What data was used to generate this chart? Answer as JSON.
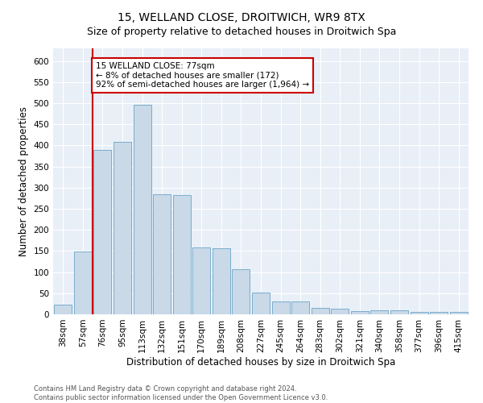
{
  "title": "15, WELLAND CLOSE, DROITWICH, WR9 8TX",
  "subtitle": "Size of property relative to detached houses in Droitwich Spa",
  "xlabel": "Distribution of detached houses by size in Droitwich Spa",
  "ylabel": "Number of detached properties",
  "categories": [
    "38sqm",
    "57sqm",
    "76sqm",
    "95sqm",
    "113sqm",
    "132sqm",
    "151sqm",
    "170sqm",
    "189sqm",
    "208sqm",
    "227sqm",
    "245sqm",
    "264sqm",
    "283sqm",
    "302sqm",
    "321sqm",
    "340sqm",
    "358sqm",
    "377sqm",
    "396sqm",
    "415sqm"
  ],
  "values": [
    22,
    148,
    390,
    408,
    497,
    285,
    283,
    158,
    157,
    107,
    52,
    30,
    30,
    15,
    13,
    8,
    9,
    9,
    5,
    5,
    5
  ],
  "bar_color": "#c9d9e8",
  "bar_edge_color": "#7aadcc",
  "property_line_index": 2,
  "property_line_color": "#cc0000",
  "annotation_text": "15 WELLAND CLOSE: 77sqm\n← 8% of detached houses are smaller (172)\n92% of semi-detached houses are larger (1,964) →",
  "annotation_box_color": "#ffffff",
  "annotation_box_edge": "#cc0000",
  "ylim": [
    0,
    630
  ],
  "yticks": [
    0,
    50,
    100,
    150,
    200,
    250,
    300,
    350,
    400,
    450,
    500,
    550,
    600
  ],
  "footer": "Contains HM Land Registry data © Crown copyright and database right 2024.\nContains public sector information licensed under the Open Government Licence v3.0.",
  "background_color": "#e8eff7",
  "title_fontsize": 10,
  "subtitle_fontsize": 9,
  "xlabel_fontsize": 8.5,
  "ylabel_fontsize": 8.5,
  "tick_fontsize": 7.5,
  "annotation_fontsize": 7.5,
  "footer_fontsize": 6
}
